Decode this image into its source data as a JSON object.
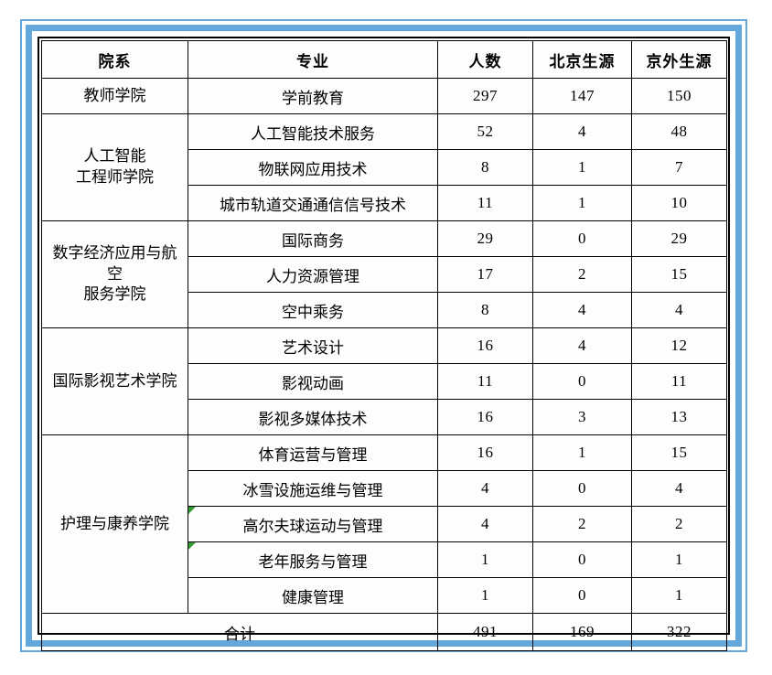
{
  "colors": {
    "frame_blue": "#64A7DB",
    "table_border": "#000000",
    "error_indicator_green": "#339933"
  },
  "table": {
    "headers": [
      "院系",
      "专业",
      "人数",
      "北京生源",
      "京外生源"
    ],
    "groups": [
      {
        "department": "教师学院",
        "rows": [
          {
            "major": "学前教育",
            "total": "297",
            "beijing": "147",
            "outside": "150"
          }
        ]
      },
      {
        "department": "人工智能\n工程师学院",
        "rows": [
          {
            "major": "人工智能技术服务",
            "total": "52",
            "beijing": "4",
            "outside": "48"
          },
          {
            "major": "物联网应用技术",
            "total": "8",
            "beijing": "1",
            "outside": "7"
          },
          {
            "major": "城市轨道交通通信信号技术",
            "total": "11",
            "beijing": "1",
            "outside": "10"
          }
        ]
      },
      {
        "department": "数字经济应用与航空\n服务学院",
        "rows": [
          {
            "major": "国际商务",
            "total": "29",
            "beijing": "0",
            "outside": "29"
          },
          {
            "major": "人力资源管理",
            "total": "17",
            "beijing": "2",
            "outside": "15"
          },
          {
            "major": "空中乘务",
            "total": "8",
            "beijing": "4",
            "outside": "4"
          }
        ]
      },
      {
        "department": "国际影视艺术学院",
        "rows": [
          {
            "major": "艺术设计",
            "total": "16",
            "beijing": "4",
            "outside": "12"
          },
          {
            "major": "影视动画",
            "total": "11",
            "beijing": "0",
            "outside": "11"
          },
          {
            "major": "影视多媒体技术",
            "total": "16",
            "beijing": "3",
            "outside": "13"
          }
        ]
      },
      {
        "department": "护理与康养学院",
        "rows": [
          {
            "major": "体育运营与管理",
            "total": "16",
            "beijing": "1",
            "outside": "15"
          },
          {
            "major": "冰雪设施运维与管理",
            "total": "4",
            "beijing": "0",
            "outside": "4"
          },
          {
            "major": "高尔夫球运动与管理",
            "total": "4",
            "beijing": "2",
            "outside": "2",
            "flag": true
          },
          {
            "major": "老年服务与管理",
            "total": "1",
            "beijing": "0",
            "outside": "1",
            "flag": true
          },
          {
            "major": "健康管理",
            "total": "1",
            "beijing": "0",
            "outside": "1"
          }
        ]
      }
    ],
    "footer": {
      "label": "合计",
      "total": "491",
      "beijing": "169",
      "outside": "322"
    }
  }
}
